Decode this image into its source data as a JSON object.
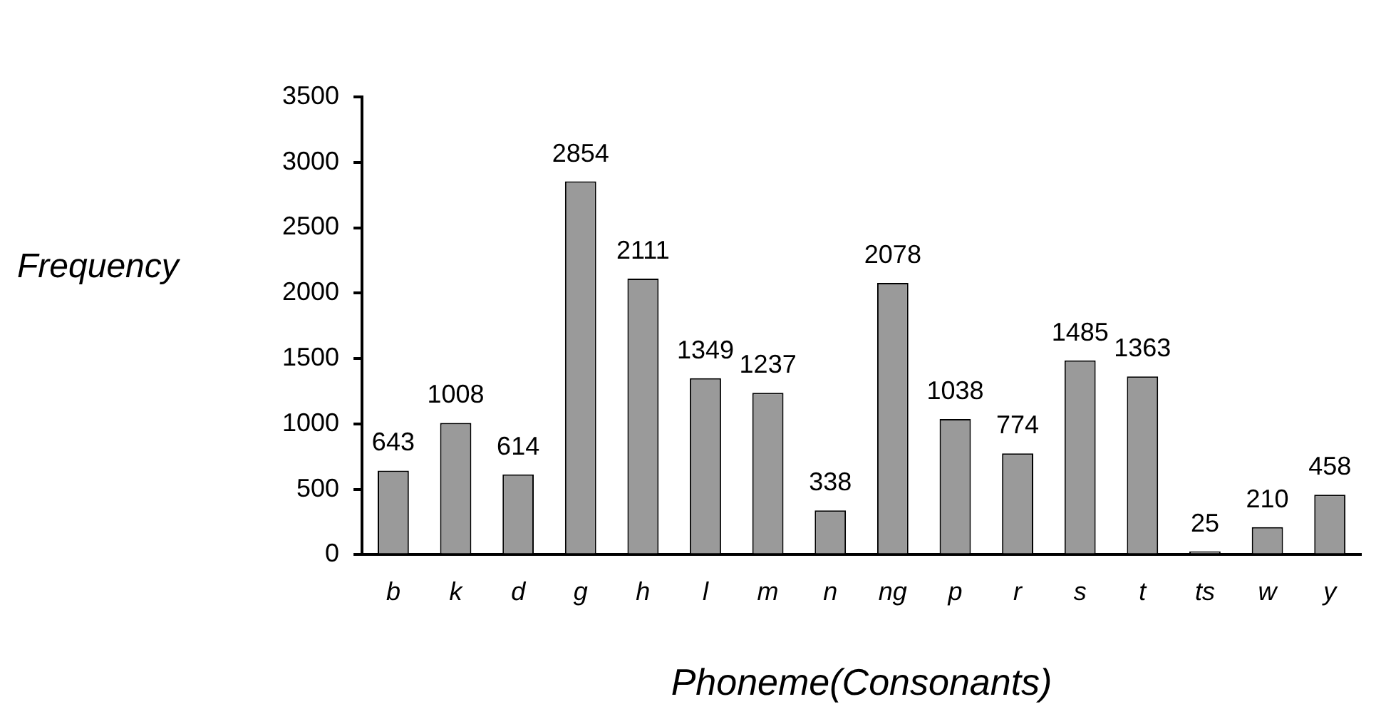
{
  "chart_data": {
    "type": "bar",
    "xlabel": "Phoneme(Consonants)",
    "ylabel": "Frequency",
    "categories": [
      "b",
      "k",
      "d",
      "g",
      "h",
      "l",
      "m",
      "n",
      "ng",
      "p",
      "r",
      "s",
      "t",
      "ts",
      "w",
      "y"
    ],
    "values": [
      643,
      1008,
      614,
      2854,
      2111,
      1349,
      1237,
      338,
      2078,
      1038,
      774,
      1485,
      1363,
      25,
      210,
      458
    ],
    "color": "#9a9a9a",
    "ylim": [
      0,
      3500
    ],
    "yticks": [
      0,
      500,
      1000,
      1500,
      2000,
      2500,
      3000,
      3500
    ],
    "grid": false,
    "legend": false,
    "data_labels": true
  }
}
